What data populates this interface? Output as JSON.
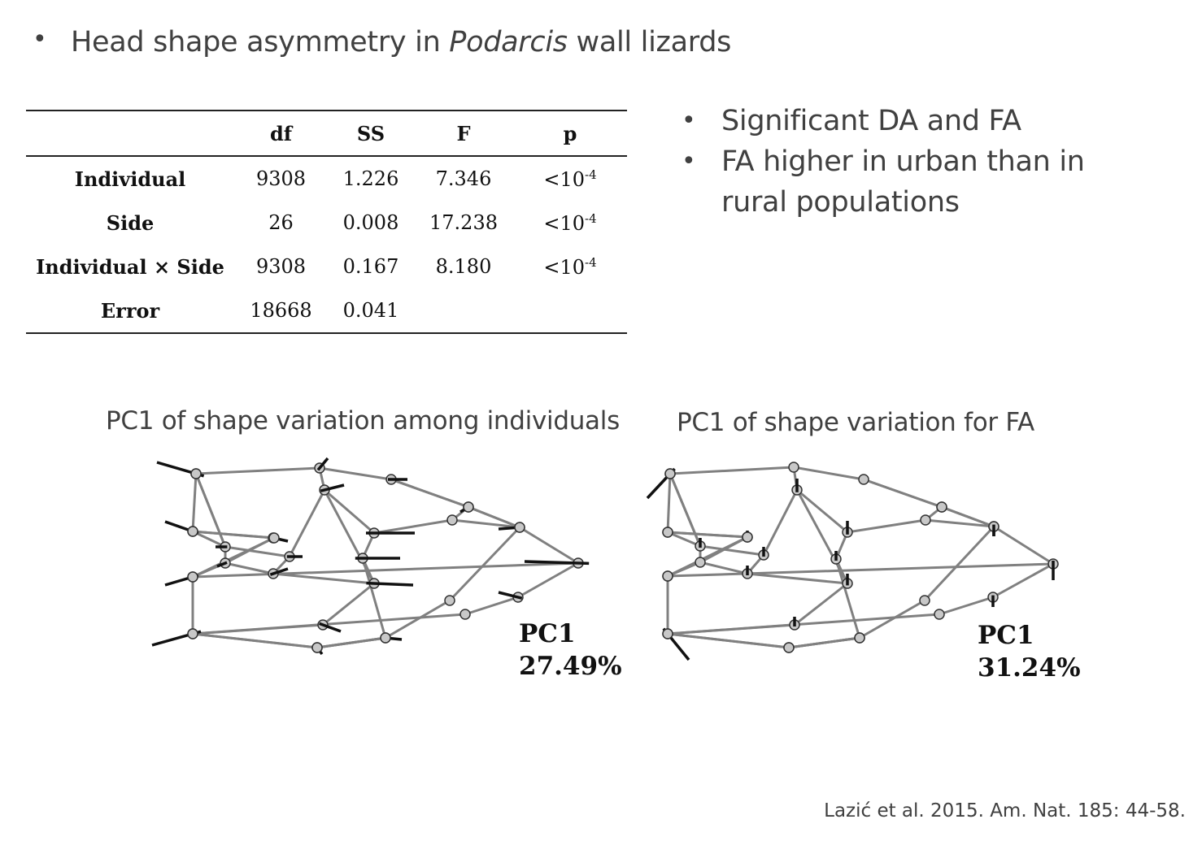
{
  "title": {
    "bullet": "•",
    "before": "Head shape asymmetry in ",
    "italic": "Podarcis",
    "after": " wall lizards"
  },
  "right_bullets": [
    {
      "bullet": "•",
      "text": "Significant DA and FA"
    },
    {
      "bullet": "•",
      "text": "FA higher in urban than in rural populations"
    }
  ],
  "table": {
    "headers": [
      "",
      "df",
      "SS",
      "F",
      "p"
    ],
    "rows": [
      {
        "name": "Individual",
        "df": "9308",
        "ss": "1.226",
        "f": "7.346",
        "p_base": "<10",
        "p_exp": "-4"
      },
      {
        "name": "Side",
        "df": "26",
        "ss": "0.008",
        "f": "17.238",
        "p_base": "<10",
        "p_exp": "-4"
      },
      {
        "name": "Individual × Side",
        "df": "9308",
        "ss": "0.167",
        "f": "8.180",
        "p_base": "<10",
        "p_exp": "-4"
      },
      {
        "name": "Error",
        "df": "18668",
        "ss": "0.041",
        "f": "",
        "p_base": "",
        "p_exp": ""
      }
    ]
  },
  "figures": {
    "left": {
      "caption": "PC1 of shape variation among individuals",
      "pc_label": "PC1",
      "pc_value": "27.49%"
    },
    "right": {
      "caption": "PC1 of shape variation for FA",
      "pc_label": "PC1",
      "pc_value": "31.24%"
    }
  },
  "citation": "Lazić et al. 2015. Am. Nat. 185: 44-58."
}
